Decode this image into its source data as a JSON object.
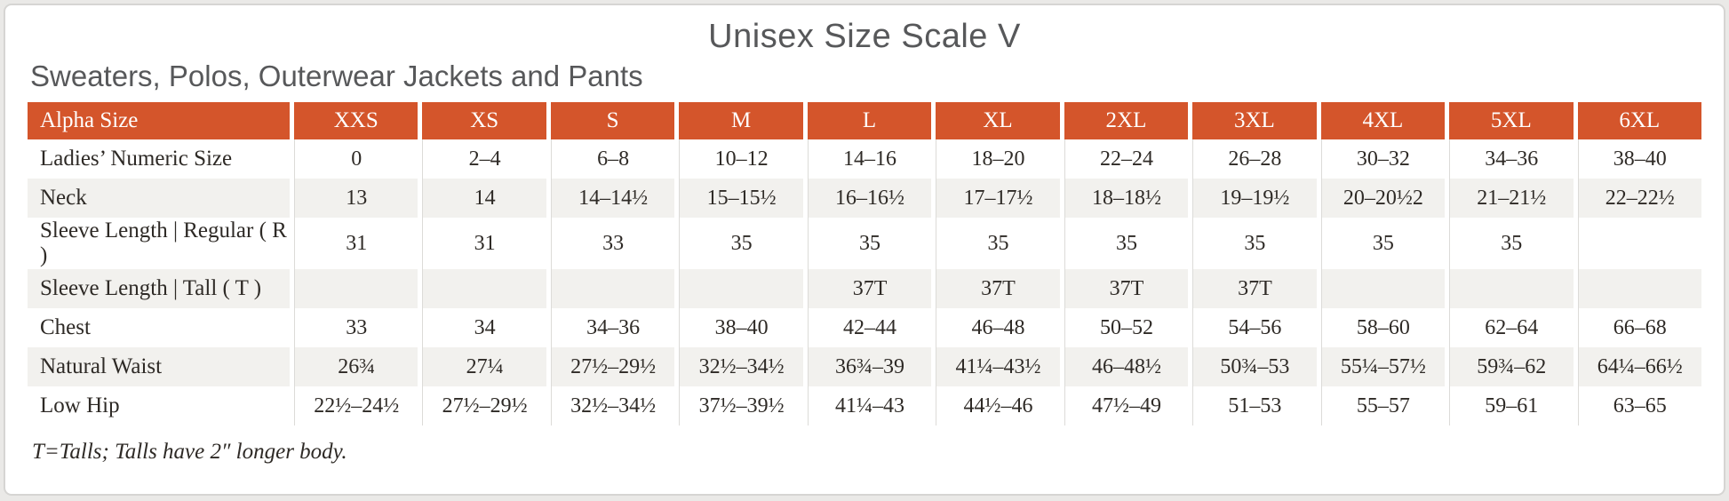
{
  "page": {
    "title": "Unisex Size Scale V",
    "subtitle": "Sweaters, Polos, Outerwear Jackets and Pants",
    "footnote": "T=Talls; Talls have 2″ longer body."
  },
  "table": {
    "columns": [
      "Alpha Size",
      "XXS",
      "XS",
      "S",
      "M",
      "L",
      "XL",
      "2XL",
      "3XL",
      "4XL",
      "5XL",
      "6XL"
    ],
    "rows": [
      {
        "label": "Ladies’ Numeric Size",
        "values": [
          "0",
          "2–4",
          "6–8",
          "10–12",
          "14–16",
          "18–20",
          "22–24",
          "26–28",
          "30–32",
          "34–36",
          "38–40"
        ]
      },
      {
        "label": "Neck",
        "values": [
          "13",
          "14",
          "14–14½",
          "15–15½",
          "16–16½",
          "17–17½",
          "18–18½",
          "19–19½",
          "20–20½2",
          "21–21½",
          "22–22½"
        ]
      },
      {
        "label": "Sleeve Length | Regular ( R )",
        "values": [
          "31",
          "31",
          "33",
          "35",
          "35",
          "35",
          "35",
          "35",
          "35",
          "35",
          ""
        ]
      },
      {
        "label": "Sleeve Length | Tall ( T )",
        "values": [
          "",
          "",
          "",
          "",
          "37T",
          "37T",
          "37T",
          "37T",
          "",
          "",
          ""
        ]
      },
      {
        "label": "Chest",
        "values": [
          "33",
          "34",
          "34–36",
          "38–40",
          "42–44",
          "46–48",
          "50–52",
          "54–56",
          "58–60",
          "62–64",
          "66–68"
        ]
      },
      {
        "label": "Natural Waist",
        "values": [
          "26¾",
          "27¼",
          "27½–29½",
          "32½–34½",
          "36¾–39",
          "41¼–43½",
          "46–48½",
          "50¾–53",
          "55¼–57½",
          "59¾–62",
          "64¼–66½"
        ]
      },
      {
        "label": "Low Hip",
        "values": [
          "22½–24½",
          "27½–29½",
          "32½–34½",
          "37½–39½",
          "41¼–43",
          "44½–46",
          "47½–49",
          "51–53",
          "55–57",
          "59–61",
          "63–65"
        ]
      }
    ]
  },
  "colors": {
    "header_bg": "#D4552B",
    "header_text": "#FFFFFF",
    "stripe_bg": "#F2F1EE",
    "body_text": "#2E2A26",
    "title_text": "#57585A",
    "card_border": "#D6D5D3",
    "page_bg": "#EAE9E7",
    "grid_line": "#DCDBD8"
  }
}
